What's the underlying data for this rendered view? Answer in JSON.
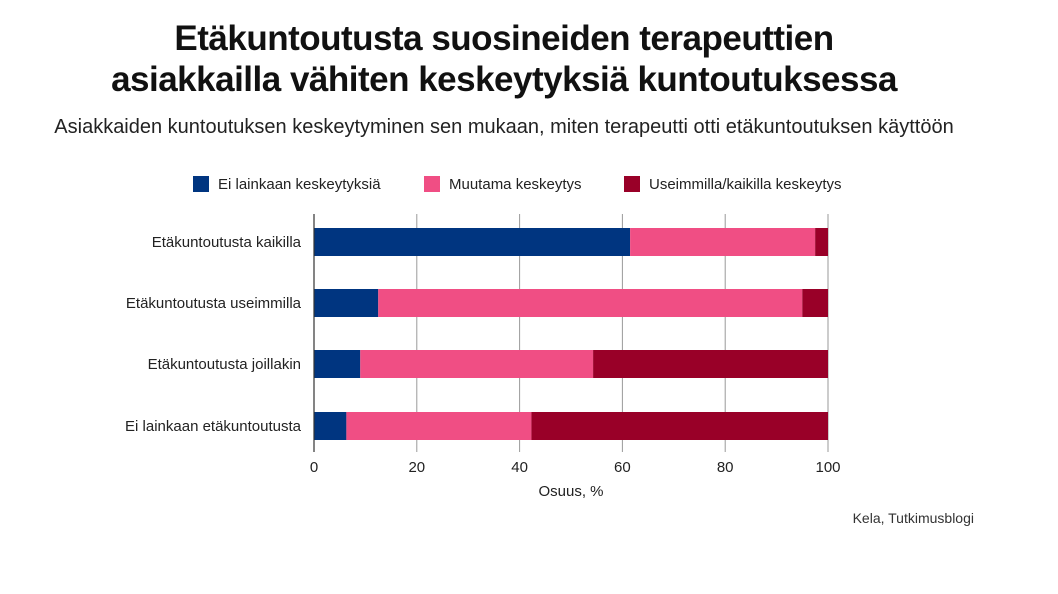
{
  "title_line1": "Etäkuntoutusta suosineiden terapeuttien",
  "title_line2": "asiakkailla vähiten keskeytyksiä kuntoutuksessa",
  "subtitle": "Asiakkaiden kuntoutuksen keskeytyminen sen mukaan, miten terapeutti otti etäkuntoutuksen käyttöön",
  "source": "Kela, Tutkimusblogi",
  "chart_data": {
    "type": "bar",
    "orientation": "horizontal",
    "stacked": true,
    "title": "Etäkuntoutusta suosineiden terapeuttien asiakkailla vähiten keskeytyksiä kuntoutuksessa",
    "subtitle": "Asiakkaiden kuntoutuksen keskeytyminen sen mukaan, miten terapeutti otti etäkuntoutuksen käyttöön",
    "xlabel": "Osuus, %",
    "ylabel": "",
    "xlim": [
      0,
      100
    ],
    "xticks": [
      0,
      20,
      40,
      60,
      80,
      100
    ],
    "grid": true,
    "legend_position": "top",
    "categories": [
      "Etäkuntoutusta kaikilla",
      "Etäkuntoutusta useimmilla",
      "Etäkuntoutusta joillakin",
      "Ei lainkaan etäkuntoutusta"
    ],
    "series": [
      {
        "name": "Ei lainkaan keskeytyksiä",
        "color": "#003580",
        "values": [
          61.5,
          12.5,
          9.0,
          6.3
        ]
      },
      {
        "name": "Muutama keskeytys",
        "color": "#f04e84",
        "values": [
          36.0,
          82.5,
          45.3,
          36.0
        ]
      },
      {
        "name": "Useimmilla/kaikilla keskeytys",
        "color": "#990028",
        "values": [
          2.5,
          5.0,
          45.7,
          57.7
        ]
      }
    ]
  }
}
